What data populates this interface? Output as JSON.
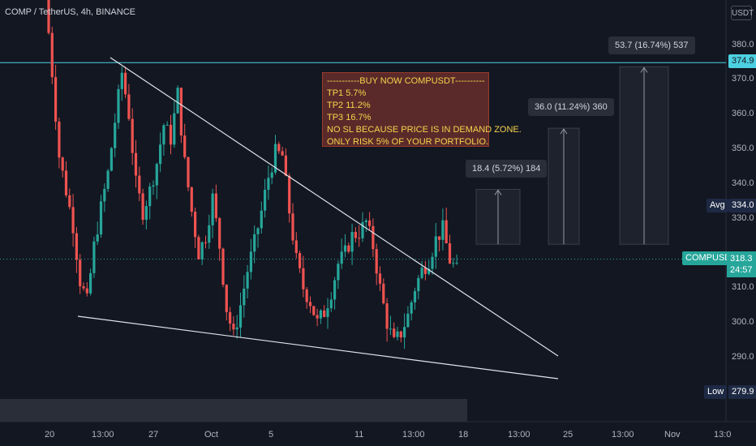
{
  "header": {
    "title": "COMP / TetherUS, 4h, BINANCE"
  },
  "currency_button": "USDT",
  "annotation_lines": [
    "-----------BUY NOW COMPUSDT----------",
    "TP1  5.7%",
    "TP2 11.2%",
    "TP3 16.7%",
    "NO SL BECAUSE PRICE IS IN DEMAND ZONE.",
    "ONLY RISK 5% OF YOUR PORTFOLIO."
  ],
  "callouts": {
    "tp1": "18.4 (5.72%) 184",
    "tp2": "36.0 (11.24%) 360",
    "tp3": "53.7 (16.74%) 537"
  },
  "price_axis": {
    "ticks": [
      "380.0",
      "370.0",
      "360.0",
      "350.0",
      "340.0",
      "330.0",
      "310.0",
      "300.0",
      "290.0"
    ],
    "resistance_value": "374.9",
    "avg_label": "Avg",
    "avg_value": "334.0",
    "symbol_label": "COMPUSDT",
    "last_price": "318.3",
    "countdown": "24:57",
    "low_label": "Low",
    "low_value": "279.9"
  },
  "time_axis": [
    "20",
    "13:00",
    "27",
    "Oct",
    "5",
    "11",
    "13:00",
    "18",
    "13:00",
    "25",
    "13:00",
    "Nov",
    "13:0"
  ],
  "colors": {
    "background": "#131722",
    "up": "#26a69a",
    "down": "#ef5350",
    "resistance_line": "#4dd0e1",
    "trendline": "#e0e3eb",
    "annotation_bg": "#5a2a2a",
    "annotation_text": "#f7d44c"
  },
  "chart_data": {
    "type": "candlestick",
    "title": "COMP / TetherUS, 4h, BINANCE",
    "ylim": [
      276,
      392
    ],
    "resistance": 374.9,
    "last": 318.3,
    "avg": 334.0,
    "low": 279.9,
    "tp_levels": [
      {
        "label": "TP1",
        "from": 320,
        "to": 338.4,
        "change": "18.4 (5.72%) 184"
      },
      {
        "label": "TP2",
        "from": 320,
        "to": 356.0,
        "change": "36.0 (11.24%) 360"
      },
      {
        "label": "TP3",
        "from": 320,
        "to": 373.7,
        "change": "53.7 (16.74%) 537"
      }
    ],
    "price_path": [
      [
        0,
        395
      ],
      [
        2,
        372
      ],
      [
        4,
        348
      ],
      [
        6,
        338
      ],
      [
        8,
        328
      ],
      [
        10,
        312
      ],
      [
        12,
        306
      ],
      [
        14,
        322
      ],
      [
        16,
        333
      ],
      [
        18,
        343
      ],
      [
        20,
        358
      ],
      [
        22,
        372
      ],
      [
        24,
        360
      ],
      [
        26,
        340
      ],
      [
        28,
        332
      ],
      [
        30,
        338
      ],
      [
        32,
        346
      ],
      [
        34,
        357
      ],
      [
        36,
        353
      ],
      [
        38,
        366
      ],
      [
        40,
        346
      ],
      [
        42,
        332
      ],
      [
        44,
        320
      ],
      [
        46,
        325
      ],
      [
        48,
        336
      ],
      [
        50,
        322
      ],
      [
        52,
        304
      ],
      [
        54,
        296
      ],
      [
        56,
        305
      ],
      [
        58,
        315
      ],
      [
        60,
        323
      ],
      [
        62,
        332
      ],
      [
        64,
        342
      ],
      [
        66,
        349
      ],
      [
        68,
        348
      ],
      [
        70,
        332
      ],
      [
        72,
        318
      ],
      [
        74,
        310
      ],
      [
        76,
        306
      ],
      [
        78,
        300
      ],
      [
        80,
        303
      ],
      [
        82,
        309
      ],
      [
        84,
        317
      ],
      [
        86,
        320
      ],
      [
        88,
        325
      ],
      [
        90,
        326
      ],
      [
        92,
        329
      ],
      [
        94,
        322
      ],
      [
        96,
        310
      ],
      [
        98,
        300
      ],
      [
        100,
        294
      ],
      [
        102,
        297
      ],
      [
        104,
        302
      ],
      [
        106,
        310
      ],
      [
        108,
        315
      ],
      [
        110,
        318
      ],
      [
        112,
        324
      ],
      [
        114,
        327
      ],
      [
        116,
        318
      ],
      [
        118,
        315
      ]
    ]
  }
}
